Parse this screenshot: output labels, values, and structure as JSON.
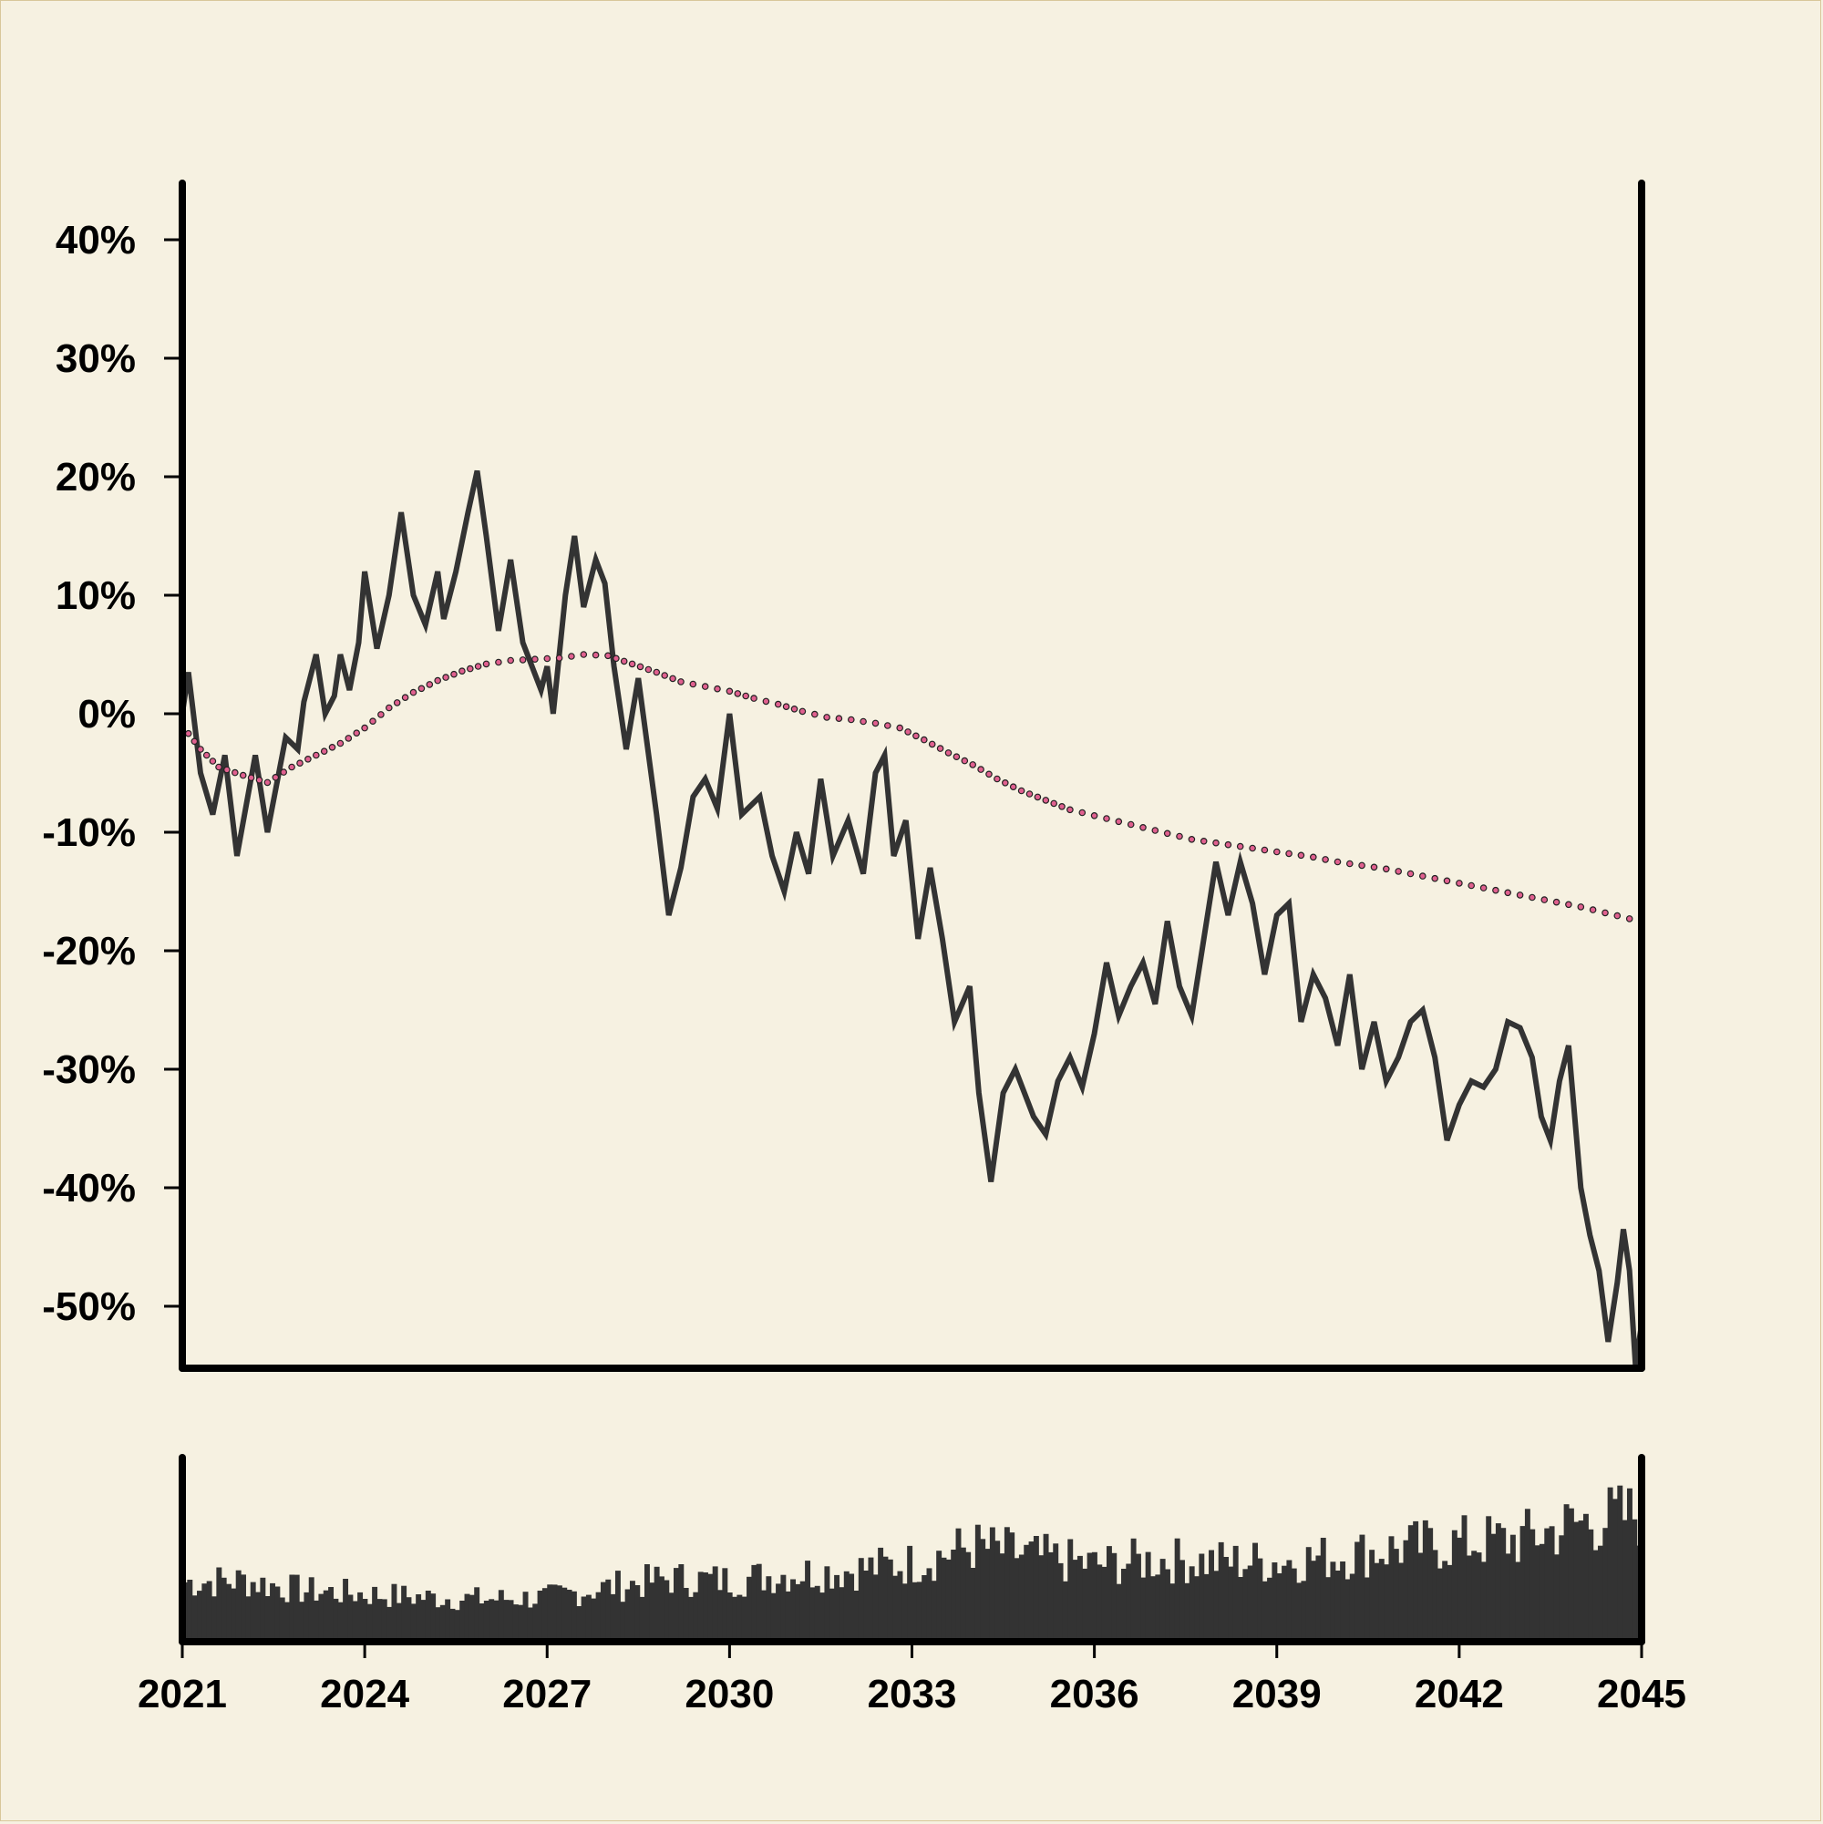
{
  "chart_data": {
    "type": "line",
    "title": "",
    "xlabel": "",
    "ylabel": "",
    "x_ticks": [
      "2021",
      "2024",
      "2027",
      "2030",
      "2033",
      "2036",
      "2039",
      "2042",
      "2045"
    ],
    "y_ticks": [
      "40%",
      "30%",
      "20%",
      "10%",
      "0%",
      "-10%",
      "-20%",
      "-30%",
      "-40%",
      "-50%"
    ],
    "xlim": [
      2021,
      2045
    ],
    "ylim": [
      -55,
      45
    ],
    "grid": false,
    "legend": "none",
    "colors": {
      "price": "#333333",
      "trend": "#e0608f",
      "volume": "#333333",
      "axes": "#000000",
      "background": "#f6f1e1"
    },
    "series": [
      {
        "role": "price",
        "style": "solid",
        "points": [
          [
            2021.0,
            0
          ],
          [
            2021.1,
            3.5
          ],
          [
            2021.3,
            -5
          ],
          [
            2021.5,
            -8.5
          ],
          [
            2021.7,
            -3.5
          ],
          [
            2021.9,
            -12
          ],
          [
            2022.2,
            -3.5
          ],
          [
            2022.4,
            -10
          ],
          [
            2022.7,
            -2
          ],
          [
            2022.9,
            -3
          ],
          [
            2023.0,
            1
          ],
          [
            2023.2,
            5
          ],
          [
            2023.35,
            0
          ],
          [
            2023.5,
            1.5
          ],
          [
            2023.6,
            5
          ],
          [
            2023.75,
            2
          ],
          [
            2023.9,
            6
          ],
          [
            2024.0,
            12
          ],
          [
            2024.2,
            5.5
          ],
          [
            2024.4,
            10
          ],
          [
            2024.6,
            17
          ],
          [
            2024.8,
            10
          ],
          [
            2025.0,
            7.5
          ],
          [
            2025.2,
            12
          ],
          [
            2025.3,
            8
          ],
          [
            2025.5,
            12
          ],
          [
            2025.7,
            17
          ],
          [
            2025.85,
            20.5
          ],
          [
            2026.0,
            15
          ],
          [
            2026.2,
            7
          ],
          [
            2026.4,
            13
          ],
          [
            2026.6,
            6
          ],
          [
            2026.9,
            2
          ],
          [
            2027.0,
            4
          ],
          [
            2027.1,
            0
          ],
          [
            2027.3,
            10
          ],
          [
            2027.45,
            15
          ],
          [
            2027.6,
            9
          ],
          [
            2027.8,
            13
          ],
          [
            2027.95,
            11
          ],
          [
            2028.1,
            4
          ],
          [
            2028.3,
            -3
          ],
          [
            2028.5,
            3
          ],
          [
            2028.8,
            -8.5
          ],
          [
            2029.0,
            -17
          ],
          [
            2029.2,
            -13
          ],
          [
            2029.4,
            -7
          ],
          [
            2029.6,
            -5.5
          ],
          [
            2029.8,
            -8
          ],
          [
            2030.0,
            0
          ],
          [
            2030.2,
            -8.5
          ],
          [
            2030.5,
            -7
          ],
          [
            2030.7,
            -12
          ],
          [
            2030.9,
            -15
          ],
          [
            2031.1,
            -10
          ],
          [
            2031.3,
            -13.5
          ],
          [
            2031.5,
            -5.5
          ],
          [
            2031.7,
            -12
          ],
          [
            2031.95,
            -9
          ],
          [
            2032.2,
            -13.5
          ],
          [
            2032.4,
            -5
          ],
          [
            2032.55,
            -3.5
          ],
          [
            2032.7,
            -12
          ],
          [
            2032.9,
            -9
          ],
          [
            2033.1,
            -19
          ],
          [
            2033.3,
            -13
          ],
          [
            2033.5,
            -19
          ],
          [
            2033.7,
            -26
          ],
          [
            2033.95,
            -23
          ],
          [
            2034.1,
            -32
          ],
          [
            2034.3,
            -39.5
          ],
          [
            2034.5,
            -32
          ],
          [
            2034.7,
            -30
          ],
          [
            2035.0,
            -34
          ],
          [
            2035.2,
            -35.5
          ],
          [
            2035.4,
            -31
          ],
          [
            2035.6,
            -29
          ],
          [
            2035.8,
            -31.5
          ],
          [
            2036.0,
            -27
          ],
          [
            2036.2,
            -21
          ],
          [
            2036.4,
            -25.5
          ],
          [
            2036.6,
            -23
          ],
          [
            2036.8,
            -21
          ],
          [
            2037.0,
            -24.5
          ],
          [
            2037.2,
            -17.5
          ],
          [
            2037.4,
            -23
          ],
          [
            2037.6,
            -25.5
          ],
          [
            2037.8,
            -19
          ],
          [
            2038.0,
            -12.5
          ],
          [
            2038.2,
            -17
          ],
          [
            2038.4,
            -12.5
          ],
          [
            2038.6,
            -16
          ],
          [
            2038.8,
            -22
          ],
          [
            2039.0,
            -17
          ],
          [
            2039.2,
            -16
          ],
          [
            2039.4,
            -26
          ],
          [
            2039.6,
            -22
          ],
          [
            2039.8,
            -24
          ],
          [
            2040.0,
            -28
          ],
          [
            2040.2,
            -22
          ],
          [
            2040.4,
            -30
          ],
          [
            2040.6,
            -26
          ],
          [
            2040.8,
            -31
          ],
          [
            2041.0,
            -29
          ],
          [
            2041.2,
            -26
          ],
          [
            2041.4,
            -25
          ],
          [
            2041.6,
            -29
          ],
          [
            2041.8,
            -36
          ],
          [
            2042.0,
            -33
          ],
          [
            2042.2,
            -31
          ],
          [
            2042.4,
            -31.5
          ],
          [
            2042.6,
            -30
          ],
          [
            2042.8,
            -26
          ],
          [
            2043.0,
            -26.5
          ],
          [
            2043.2,
            -29
          ],
          [
            2043.35,
            -34
          ],
          [
            2043.5,
            -36
          ],
          [
            2043.65,
            -31
          ],
          [
            2043.8,
            -28
          ],
          [
            2044.0,
            -40
          ],
          [
            2044.15,
            -44
          ],
          [
            2044.3,
            -47
          ],
          [
            2044.45,
            -53
          ],
          [
            2044.6,
            -48
          ],
          [
            2044.7,
            -43.5
          ],
          [
            2044.8,
            -47
          ],
          [
            2044.9,
            -55
          ],
          [
            2045.0,
            -51.5
          ]
        ]
      },
      {
        "role": "trend",
        "style": "dotted",
        "points": [
          [
            2021.0,
            -1
          ],
          [
            2021.3,
            -3
          ],
          [
            2021.6,
            -4.5
          ],
          [
            2022.0,
            -5.2
          ],
          [
            2022.4,
            -5.8
          ],
          [
            2022.8,
            -4.5
          ],
          [
            2023.2,
            -3.5
          ],
          [
            2023.6,
            -2.5
          ],
          [
            2024.0,
            -1.2
          ],
          [
            2024.4,
            0.5
          ],
          [
            2024.8,
            1.8
          ],
          [
            2025.2,
            2.8
          ],
          [
            2025.6,
            3.6
          ],
          [
            2026.0,
            4.2
          ],
          [
            2026.4,
            4.5
          ],
          [
            2026.8,
            4.6
          ],
          [
            2027.2,
            4.7
          ],
          [
            2027.6,
            5.0
          ],
          [
            2028.0,
            4.9
          ],
          [
            2028.4,
            4.2
          ],
          [
            2028.8,
            3.5
          ],
          [
            2029.2,
            2.7
          ],
          [
            2029.6,
            2.3
          ],
          [
            2030.0,
            1.9
          ],
          [
            2030.4,
            1.3
          ],
          [
            2030.8,
            0.8
          ],
          [
            2031.2,
            0.2
          ],
          [
            2031.6,
            -0.3
          ],
          [
            2032.0,
            -0.5
          ],
          [
            2032.4,
            -0.8
          ],
          [
            2032.8,
            -1.2
          ],
          [
            2033.2,
            -2.2
          ],
          [
            2033.6,
            -3.3
          ],
          [
            2034.0,
            -4.3
          ],
          [
            2034.4,
            -5.5
          ],
          [
            2034.8,
            -6.5
          ],
          [
            2035.2,
            -7.3
          ],
          [
            2035.6,
            -8.1
          ],
          [
            2036.0,
            -8.6
          ],
          [
            2036.4,
            -9.1
          ],
          [
            2036.8,
            -9.6
          ],
          [
            2037.2,
            -10.1
          ],
          [
            2037.6,
            -10.6
          ],
          [
            2038.0,
            -10.9
          ],
          [
            2038.4,
            -11.2
          ],
          [
            2038.8,
            -11.5
          ],
          [
            2039.2,
            -11.8
          ],
          [
            2039.6,
            -12.1
          ],
          [
            2040.0,
            -12.5
          ],
          [
            2040.4,
            -12.8
          ],
          [
            2040.8,
            -13.1
          ],
          [
            2041.2,
            -13.5
          ],
          [
            2041.6,
            -13.9
          ],
          [
            2042.0,
            -14.3
          ],
          [
            2042.4,
            -14.7
          ],
          [
            2042.8,
            -15.1
          ],
          [
            2043.2,
            -15.5
          ],
          [
            2043.6,
            -15.9
          ],
          [
            2044.0,
            -16.3
          ],
          [
            2044.4,
            -16.8
          ],
          [
            2044.8,
            -17.3
          ],
          [
            2045.0,
            -17.7
          ]
        ]
      }
    ],
    "volume": {
      "role": "volume",
      "type": "bar",
      "anchors": [
        [
          2021.0,
          0.35
        ],
        [
          2022.0,
          0.36
        ],
        [
          2023.0,
          0.3
        ],
        [
          2024.0,
          0.28
        ],
        [
          2025.0,
          0.26
        ],
        [
          2026.0,
          0.25
        ],
        [
          2027.0,
          0.26
        ],
        [
          2028.0,
          0.32
        ],
        [
          2029.0,
          0.37
        ],
        [
          2030.0,
          0.36
        ],
        [
          2031.0,
          0.4
        ],
        [
          2032.0,
          0.42
        ],
        [
          2033.0,
          0.46
        ],
        [
          2034.0,
          0.56
        ],
        [
          2035.0,
          0.5
        ],
        [
          2036.0,
          0.45
        ],
        [
          2037.0,
          0.48
        ],
        [
          2038.0,
          0.47
        ],
        [
          2039.0,
          0.47
        ],
        [
          2040.0,
          0.5
        ],
        [
          2041.0,
          0.55
        ],
        [
          2042.0,
          0.58
        ],
        [
          2043.0,
          0.6
        ],
        [
          2044.0,
          0.7
        ],
        [
          2045.0,
          0.75
        ]
      ]
    }
  }
}
